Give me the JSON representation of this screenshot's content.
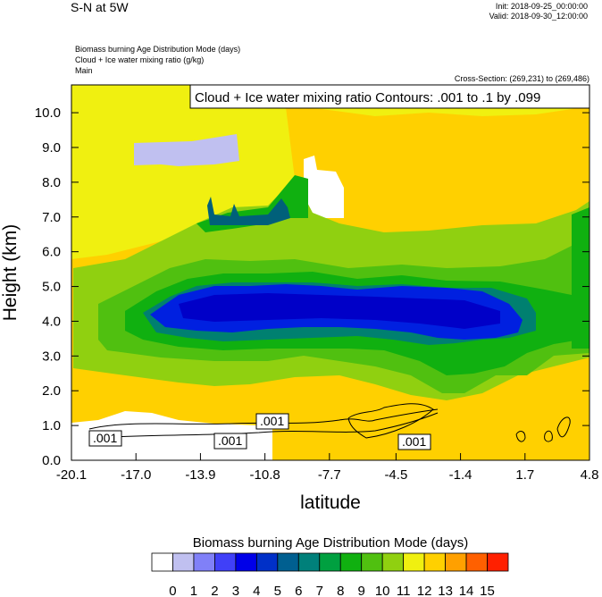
{
  "header": {
    "title": "S-N at 5W",
    "init": "Init: 2018-09-25_00:00:00",
    "valid": "Valid: 2018-09-30_12:00:00",
    "field1": "Biomass burning Age Distribution Mode   (days)",
    "field2": "Cloud + Ice water mixing ratio   (g/kg)",
    "level": "Main",
    "cross_section": "Cross-Section: (269,231) to (269,486)"
  },
  "chart_data": {
    "type": "heatmap",
    "contour_label": "Cloud + Ice water mixing ratio Contours: .001 to .1 by .099",
    "xlabel": "latitude",
    "ylabel": "Height (km)",
    "x_ticks": [
      "-20.1",
      "-17.0",
      "-13.9",
      "-10.8",
      "-7.7",
      "-4.5",
      "-1.4",
      "1.7",
      "4.8"
    ],
    "x_range": [
      -20.1,
      4.8
    ],
    "y_ticks": [
      "0.0",
      "1.0",
      "2.0",
      "3.0",
      "4.0",
      "5.0",
      "6.0",
      "7.0",
      "8.0",
      "9.0",
      "10.0"
    ],
    "y_range": [
      0.0,
      10.8
    ],
    "contour_values": [
      ".001",
      ".001",
      ".001",
      ".001"
    ],
    "colorbar": {
      "title": "Biomass burning Age Distribution Mode  (days)",
      "labels": [
        "0",
        "1",
        "2",
        "3",
        "4",
        "5",
        "6",
        "7",
        "8",
        "9",
        "10",
        "11",
        "12",
        "13",
        "14",
        "15"
      ],
      "colors": [
        "#ffffff",
        "#c0c0f0",
        "#8080f8",
        "#4040f8",
        "#0000e8",
        "#0030c8",
        "#005f90",
        "#00807a",
        "#00a040",
        "#10b010",
        "#50c010",
        "#90d010",
        "#f0f010",
        "#ffd000",
        "#ffa000",
        "#ff6000",
        "#ff2000"
      ]
    }
  }
}
